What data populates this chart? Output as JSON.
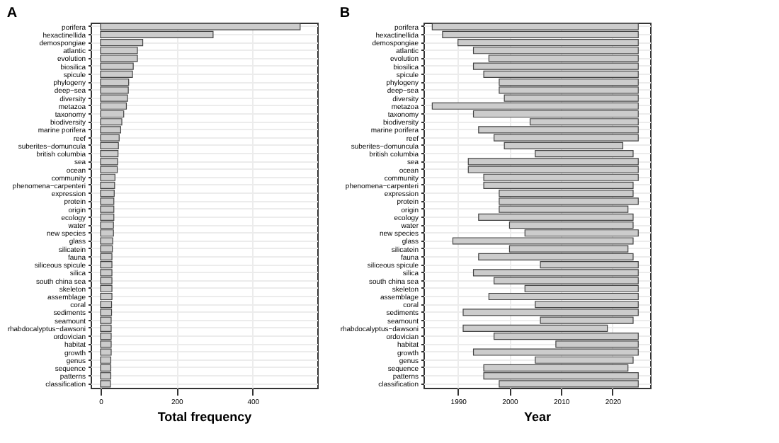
{
  "chart_data": [
    {
      "type": "bar",
      "title": "A",
      "orientation": "horizontal",
      "xlabel": "Total frequency",
      "grid": true,
      "categories": [
        "porifera",
        "hexactinellida",
        "demospongiae",
        "atlantic",
        "evolution",
        "biosilica",
        "spicule",
        "phylogeny",
        "deep−sea",
        "diversity",
        "metazoa",
        "taxonomy",
        "biodiversity",
        "marine porifera",
        "reef",
        "suberites−domuncula",
        "british columbia",
        "sea",
        "ocean",
        "community",
        "phenomena−carpenteri",
        "expression",
        "protein",
        "origin",
        "ecology",
        "water",
        "new species",
        "glass",
        "silicatein",
        "fauna",
        "siliceous spicule",
        "silica",
        "south china sea",
        "skeleton",
        "assemblage",
        "coral",
        "sediments",
        "seamount",
        "rhabdocalyptus−dawsoni",
        "ordovician",
        "habitat",
        "growth",
        "genus",
        "sequence",
        "patterns",
        "classification"
      ],
      "series": [
        {
          "color": "#cccccc",
          "values": [
            525,
            296,
            111,
            97,
            97,
            86,
            84,
            74,
            73,
            71,
            68,
            61,
            56,
            53,
            49,
            47,
            46,
            45,
            44,
            38,
            37,
            36,
            35,
            35,
            35,
            34,
            34,
            32,
            31,
            30,
            30,
            30,
            30,
            30,
            30,
            29,
            29,
            28,
            28,
            28,
            28,
            28,
            27,
            27,
            27,
            26
          ]
        }
      ],
      "xlim": [
        -26,
        570
      ],
      "xticks": [
        0,
        200,
        400
      ]
    },
    {
      "type": "bar",
      "title": "B",
      "orientation": "horizontal",
      "xlabel": "Year",
      "grid": true,
      "categories": [
        "porifera",
        "hexactinellida",
        "demospongiae",
        "atlantic",
        "evolution",
        "biosilica",
        "spicule",
        "phylogeny",
        "deep−sea",
        "diversity",
        "metazoa",
        "taxonomy",
        "biodiversity",
        "marine porifera",
        "reef",
        "suberites−domuncula",
        "british columbia",
        "sea",
        "ocean",
        "community",
        "phenomena−carpenteri",
        "expression",
        "protein",
        "origin",
        "ecology",
        "water",
        "new species",
        "glass",
        "silicatein",
        "fauna",
        "siliceous spicule",
        "silica",
        "south china sea",
        "skeleton",
        "assemblage",
        "coral",
        "sediments",
        "seamount",
        "rhabdocalyptus−dawsoni",
        "ordovician",
        "habitat",
        "growth",
        "genus",
        "sequence",
        "patterns",
        "classification"
      ],
      "series": [
        {
          "color": "#cccccc",
          "values": [
            40,
            38,
            35,
            32,
            29,
            32,
            30,
            27,
            27,
            26,
            40,
            32,
            21,
            31,
            28,
            23,
            19,
            33,
            33,
            30,
            29,
            26,
            27,
            25,
            30,
            24,
            22,
            35,
            23,
            30,
            19,
            32,
            28,
            22,
            29,
            20,
            34,
            18,
            28,
            28,
            16,
            32,
            19,
            28,
            30,
            27
          ],
          "base": [
            1985,
            1987,
            1990,
            1993,
            1996,
            1993,
            1995,
            1998,
            1998,
            1999,
            1985,
            1993,
            2004,
            1994,
            1997,
            1999,
            2005,
            1992,
            1992,
            1995,
            1995,
            1998,
            1998,
            1998,
            1994,
            2000,
            2003,
            1989,
            2000,
            1994,
            2006,
            1993,
            1997,
            2003,
            1996,
            2005,
            1991,
            2006,
            1991,
            1997,
            2009,
            1993,
            2005,
            1995,
            1995,
            1998
          ]
        }
      ],
      "xlim": [
        1983.3,
        2027.3
      ],
      "xticks": [
        1990,
        2000,
        2010,
        2020
      ]
    }
  ]
}
